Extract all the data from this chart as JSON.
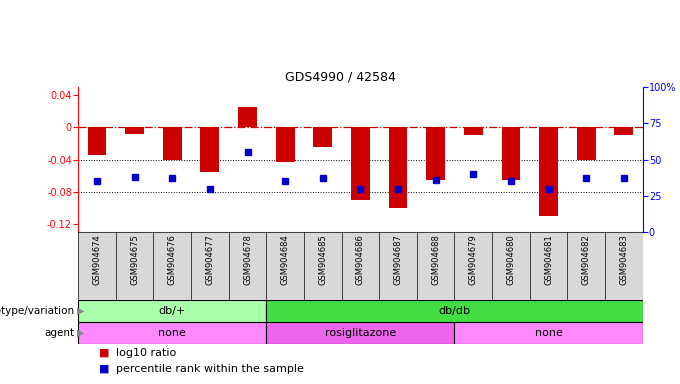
{
  "title": "GDS4990 / 42584",
  "samples": [
    "GSM904674",
    "GSM904675",
    "GSM904676",
    "GSM904677",
    "GSM904678",
    "GSM904684",
    "GSM904685",
    "GSM904686",
    "GSM904687",
    "GSM904688",
    "GSM904679",
    "GSM904680",
    "GSM904681",
    "GSM904682",
    "GSM904683"
  ],
  "log10_ratio": [
    -0.035,
    -0.008,
    -0.04,
    -0.055,
    0.025,
    -0.043,
    -0.025,
    -0.09,
    -0.1,
    -0.065,
    -0.01,
    -0.065,
    -0.11,
    -0.04,
    -0.01
  ],
  "percentile_rank": [
    35,
    38,
    37,
    30,
    55,
    35,
    37,
    30,
    30,
    36,
    40,
    35,
    30,
    37,
    37
  ],
  "ylim_left": [
    -0.13,
    0.05
  ],
  "ylim_right": [
    0,
    100
  ],
  "yticks_left": [
    -0.12,
    -0.08,
    -0.04,
    0.0,
    0.04
  ],
  "ytick_labels_left": [
    "-0.12",
    "-0.08",
    "-0.04",
    "0",
    "0.04"
  ],
  "yticks_right": [
    0,
    25,
    50,
    75,
    100
  ],
  "ytick_labels_right": [
    "0",
    "25",
    "50",
    "75",
    "100%"
  ],
  "bar_color": "#cc0000",
  "square_color": "#0000cc",
  "hline_color": "#cc0000",
  "grid_color": "#000000",
  "bg_color": "#ffffff",
  "label_bg_color": "#d8d8d8",
  "genotype_groups": [
    {
      "label": "db/+",
      "start": 0,
      "end": 5,
      "color": "#aaffaa"
    },
    {
      "label": "db/db",
      "start": 5,
      "end": 15,
      "color": "#44dd44"
    }
  ],
  "agent_groups": [
    {
      "label": "none",
      "start": 0,
      "end": 5,
      "color": "#ff88ff"
    },
    {
      "label": "rosiglitazone",
      "start": 5,
      "end": 10,
      "color": "#ee66ee"
    },
    {
      "label": "none",
      "start": 10,
      "end": 15,
      "color": "#ff88ff"
    }
  ],
  "legend_bar_label": "log10 ratio",
  "legend_sq_label": "percentile rank within the sample",
  "title_fontsize": 9,
  "tick_fontsize": 7,
  "label_fontsize": 6,
  "row_label_fontsize": 7.5,
  "row_text_fontsize": 8
}
